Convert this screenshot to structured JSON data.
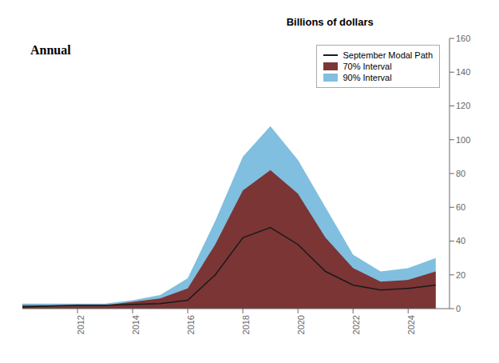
{
  "chart_data": {
    "type": "area",
    "title": "Annual",
    "y_label": "Billions of dollars",
    "x": [
      2010,
      2011,
      2012,
      2013,
      2014,
      2015,
      2016,
      2017,
      2018,
      2019,
      2020,
      2021,
      2022,
      2023,
      2024,
      2025
    ],
    "series": [
      {
        "name": "September Modal Path",
        "type": "line",
        "color": "#1a1a1a",
        "values": [
          1,
          1.5,
          2,
          2,
          2.5,
          3,
          5,
          20,
          42,
          48,
          38,
          22,
          14,
          11,
          12,
          14
        ]
      },
      {
        "name": "70% Interval",
        "type": "band",
        "color": "#7b3535",
        "low": [
          0,
          0,
          0,
          0,
          0,
          0,
          0,
          0,
          0,
          0,
          0,
          0,
          0,
          0,
          0,
          0
        ],
        "high": [
          2,
          2,
          2,
          2,
          4,
          6,
          12,
          38,
          70,
          82,
          68,
          42,
          24,
          16,
          17,
          22
        ]
      },
      {
        "name": "90% Interval",
        "type": "band",
        "color": "#80bfdf",
        "low": [
          0,
          0,
          0,
          0,
          0,
          0,
          0,
          0,
          0,
          0,
          0,
          0,
          0,
          0,
          0,
          0
        ],
        "high": [
          3,
          3,
          3,
          3,
          5,
          8,
          18,
          52,
          90,
          108,
          88,
          60,
          32,
          22,
          24,
          30
        ]
      }
    ],
    "xlim": [
      2010.0,
      2025.5
    ],
    "xticks": [
      2012,
      2014,
      2016,
      2018,
      2020,
      2022,
      2024
    ],
    "ylim": [
      0,
      160
    ],
    "yticks": [
      0,
      20,
      40,
      60,
      80,
      100,
      120,
      140,
      160
    ],
    "grid": false,
    "legend": "upper right"
  }
}
